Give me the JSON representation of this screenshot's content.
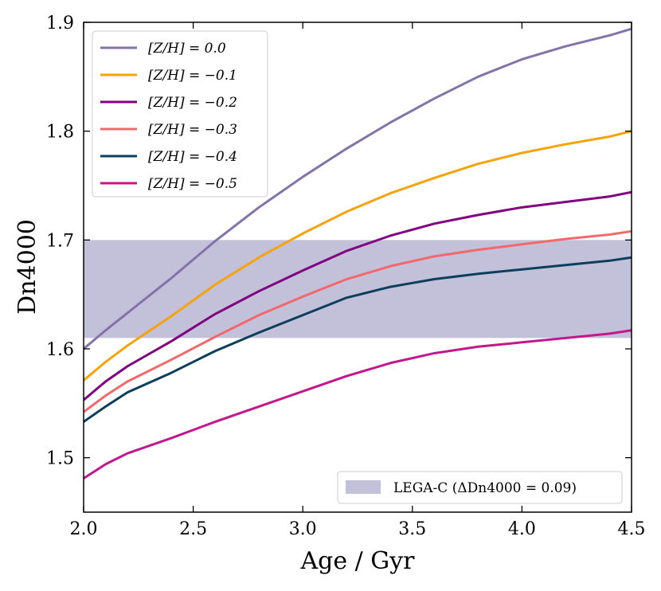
{
  "chart_data": {
    "type": "line",
    "title": "",
    "xlabel": "Age / Gyr",
    "ylabel": "Dn4000",
    "xlim": [
      2.0,
      4.5
    ],
    "ylim": [
      1.45,
      1.9
    ],
    "x_ticks": [
      "2.0",
      "2.5",
      "3.0",
      "3.5",
      "4.0",
      "4.5"
    ],
    "y_ticks": [
      "1.5",
      "1.6",
      "1.7",
      "1.8",
      "1.9"
    ],
    "x": [
      2.0,
      2.1,
      2.2,
      2.4,
      2.6,
      2.8,
      3.0,
      3.2,
      3.4,
      3.6,
      3.8,
      4.0,
      4.2,
      4.4,
      4.5
    ],
    "series": [
      {
        "name": "[Z/H] = 0.0",
        "color": "#8373a8",
        "values": [
          1.6,
          1.617,
          1.633,
          1.665,
          1.699,
          1.73,
          1.758,
          1.784,
          1.808,
          1.83,
          1.85,
          1.866,
          1.878,
          1.888,
          1.894
        ]
      },
      {
        "name": "[Z/H] = −0.1",
        "color": "#f5a30a",
        "values": [
          1.571,
          1.588,
          1.603,
          1.63,
          1.659,
          1.684,
          1.706,
          1.726,
          1.743,
          1.757,
          1.77,
          1.78,
          1.788,
          1.795,
          1.8
        ]
      },
      {
        "name": "[Z/H] = −0.2",
        "color": "#800080",
        "values": [
          1.553,
          1.57,
          1.584,
          1.607,
          1.632,
          1.653,
          1.672,
          1.69,
          1.704,
          1.715,
          1.723,
          1.73,
          1.735,
          1.74,
          1.744
        ]
      },
      {
        "name": "[Z/H] = −0.3",
        "color": "#f2696d",
        "values": [
          1.542,
          1.557,
          1.57,
          1.59,
          1.611,
          1.631,
          1.648,
          1.664,
          1.676,
          1.685,
          1.691,
          1.696,
          1.701,
          1.705,
          1.708
        ]
      },
      {
        "name": "[Z/H] = −0.4",
        "color": "#0c3f5c",
        "values": [
          1.533,
          1.547,
          1.56,
          1.578,
          1.598,
          1.615,
          1.631,
          1.647,
          1.657,
          1.664,
          1.669,
          1.673,
          1.677,
          1.681,
          1.684
        ]
      },
      {
        "name": "[Z/H] = −0.5",
        "color": "#c2188c",
        "values": [
          1.481,
          1.494,
          1.504,
          1.518,
          1.533,
          1.547,
          1.561,
          1.575,
          1.587,
          1.596,
          1.602,
          1.606,
          1.61,
          1.614,
          1.617
        ]
      }
    ],
    "band": {
      "label": "LEGA-C (ΔDn4000 = 0.09)",
      "ymin": 1.61,
      "ymax": 1.7,
      "color": "#c3c0d9"
    },
    "legend_position": "upper left",
    "band_legend_position": "lower right"
  }
}
